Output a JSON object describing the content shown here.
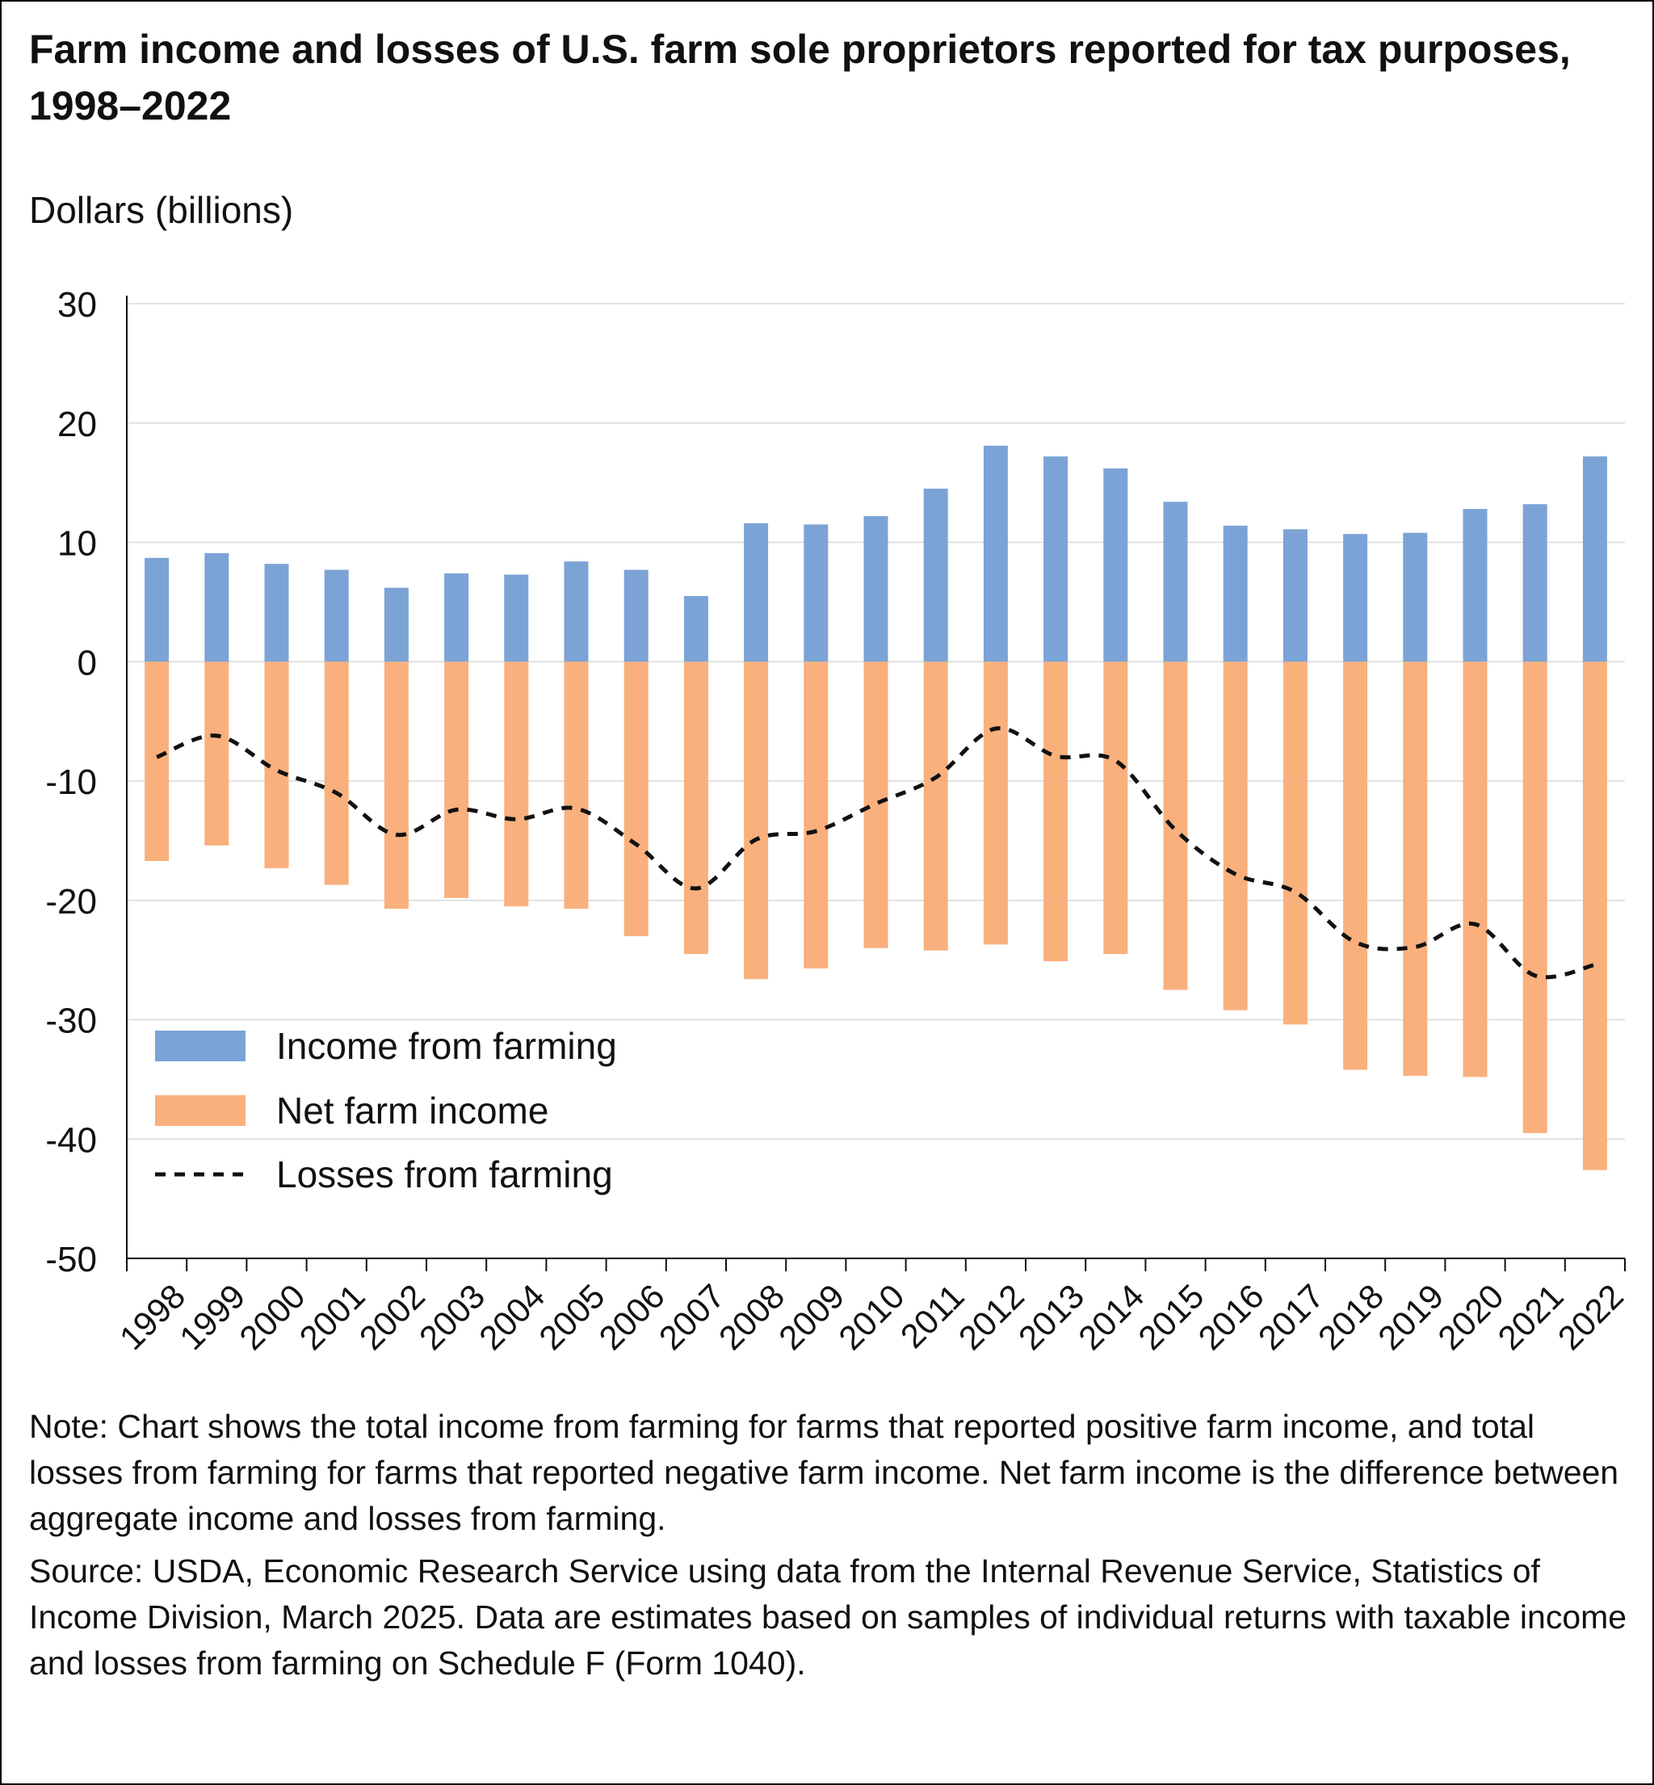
{
  "chart_data": {
    "type": "bar",
    "title": "Farm income and losses of U.S. farm sole proprietors reported for tax purposes, 1998–2022",
    "ylabel": "Dollars (billions)",
    "xlabel": "",
    "ylim": [
      -50,
      30
    ],
    "yticks": [
      30,
      20,
      10,
      0,
      -10,
      -20,
      -30,
      -40,
      -50
    ],
    "grid": true,
    "legend_position": "bottom-left",
    "categories": [
      "1998",
      "1999",
      "2000",
      "2001",
      "2002",
      "2003",
      "2004",
      "2005",
      "2006",
      "2007",
      "2008",
      "2009",
      "2010",
      "2011",
      "2012",
      "2013",
      "2014",
      "2015",
      "2016",
      "2017",
      "2018",
      "2019",
      "2020",
      "2021",
      "2022"
    ],
    "series": [
      {
        "name": "Income from farming",
        "kind": "bar",
        "color": "#7ba3d6",
        "values": [
          8.7,
          9.1,
          8.2,
          7.7,
          6.2,
          7.4,
          7.3,
          8.4,
          7.7,
          5.5,
          11.6,
          11.5,
          12.2,
          14.5,
          18.1,
          17.2,
          16.2,
          13.4,
          11.4,
          11.1,
          10.7,
          10.8,
          12.8,
          13.2,
          17.2
        ]
      },
      {
        "name": "Net farm income",
        "kind": "bar",
        "color": "#f9b07d",
        "values": [
          -16.7,
          -15.4,
          -17.3,
          -18.7,
          -20.7,
          -19.8,
          -20.5,
          -20.7,
          -23.0,
          -24.5,
          -26.6,
          -25.7,
          -24.0,
          -24.2,
          -23.7,
          -25.1,
          -24.5,
          -27.5,
          -29.2,
          -30.4,
          -34.2,
          -34.7,
          -34.8,
          -39.5,
          -42.6
        ]
      },
      {
        "name": "Losses from farming",
        "kind": "line",
        "style": "dashed",
        "color": "#111111",
        "values": [
          -8.0,
          -6.2,
          -9.1,
          -11.0,
          -14.5,
          -12.4,
          -13.2,
          -12.3,
          -15.3,
          -19.0,
          -14.9,
          -14.2,
          -11.9,
          -9.7,
          -5.6,
          -7.9,
          -8.3,
          -14.1,
          -17.8,
          -19.3,
          -23.5,
          -23.9,
          -22.0,
          -26.3,
          -25.4
        ]
      }
    ]
  },
  "notes": {
    "note": "Note: Chart shows the total income from farming for farms that reported positive farm income, and total losses from farming for farms that reported negative farm income. Net farm income is the difference between aggregate income and losses from farming.",
    "source": "Source: USDA, Economic Research Service using data from the Internal Revenue Service, Statistics of Income Division, March 2025. Data are estimates based on samples of individual returns with taxable income and losses from farming on Schedule F (Form 1040)."
  }
}
